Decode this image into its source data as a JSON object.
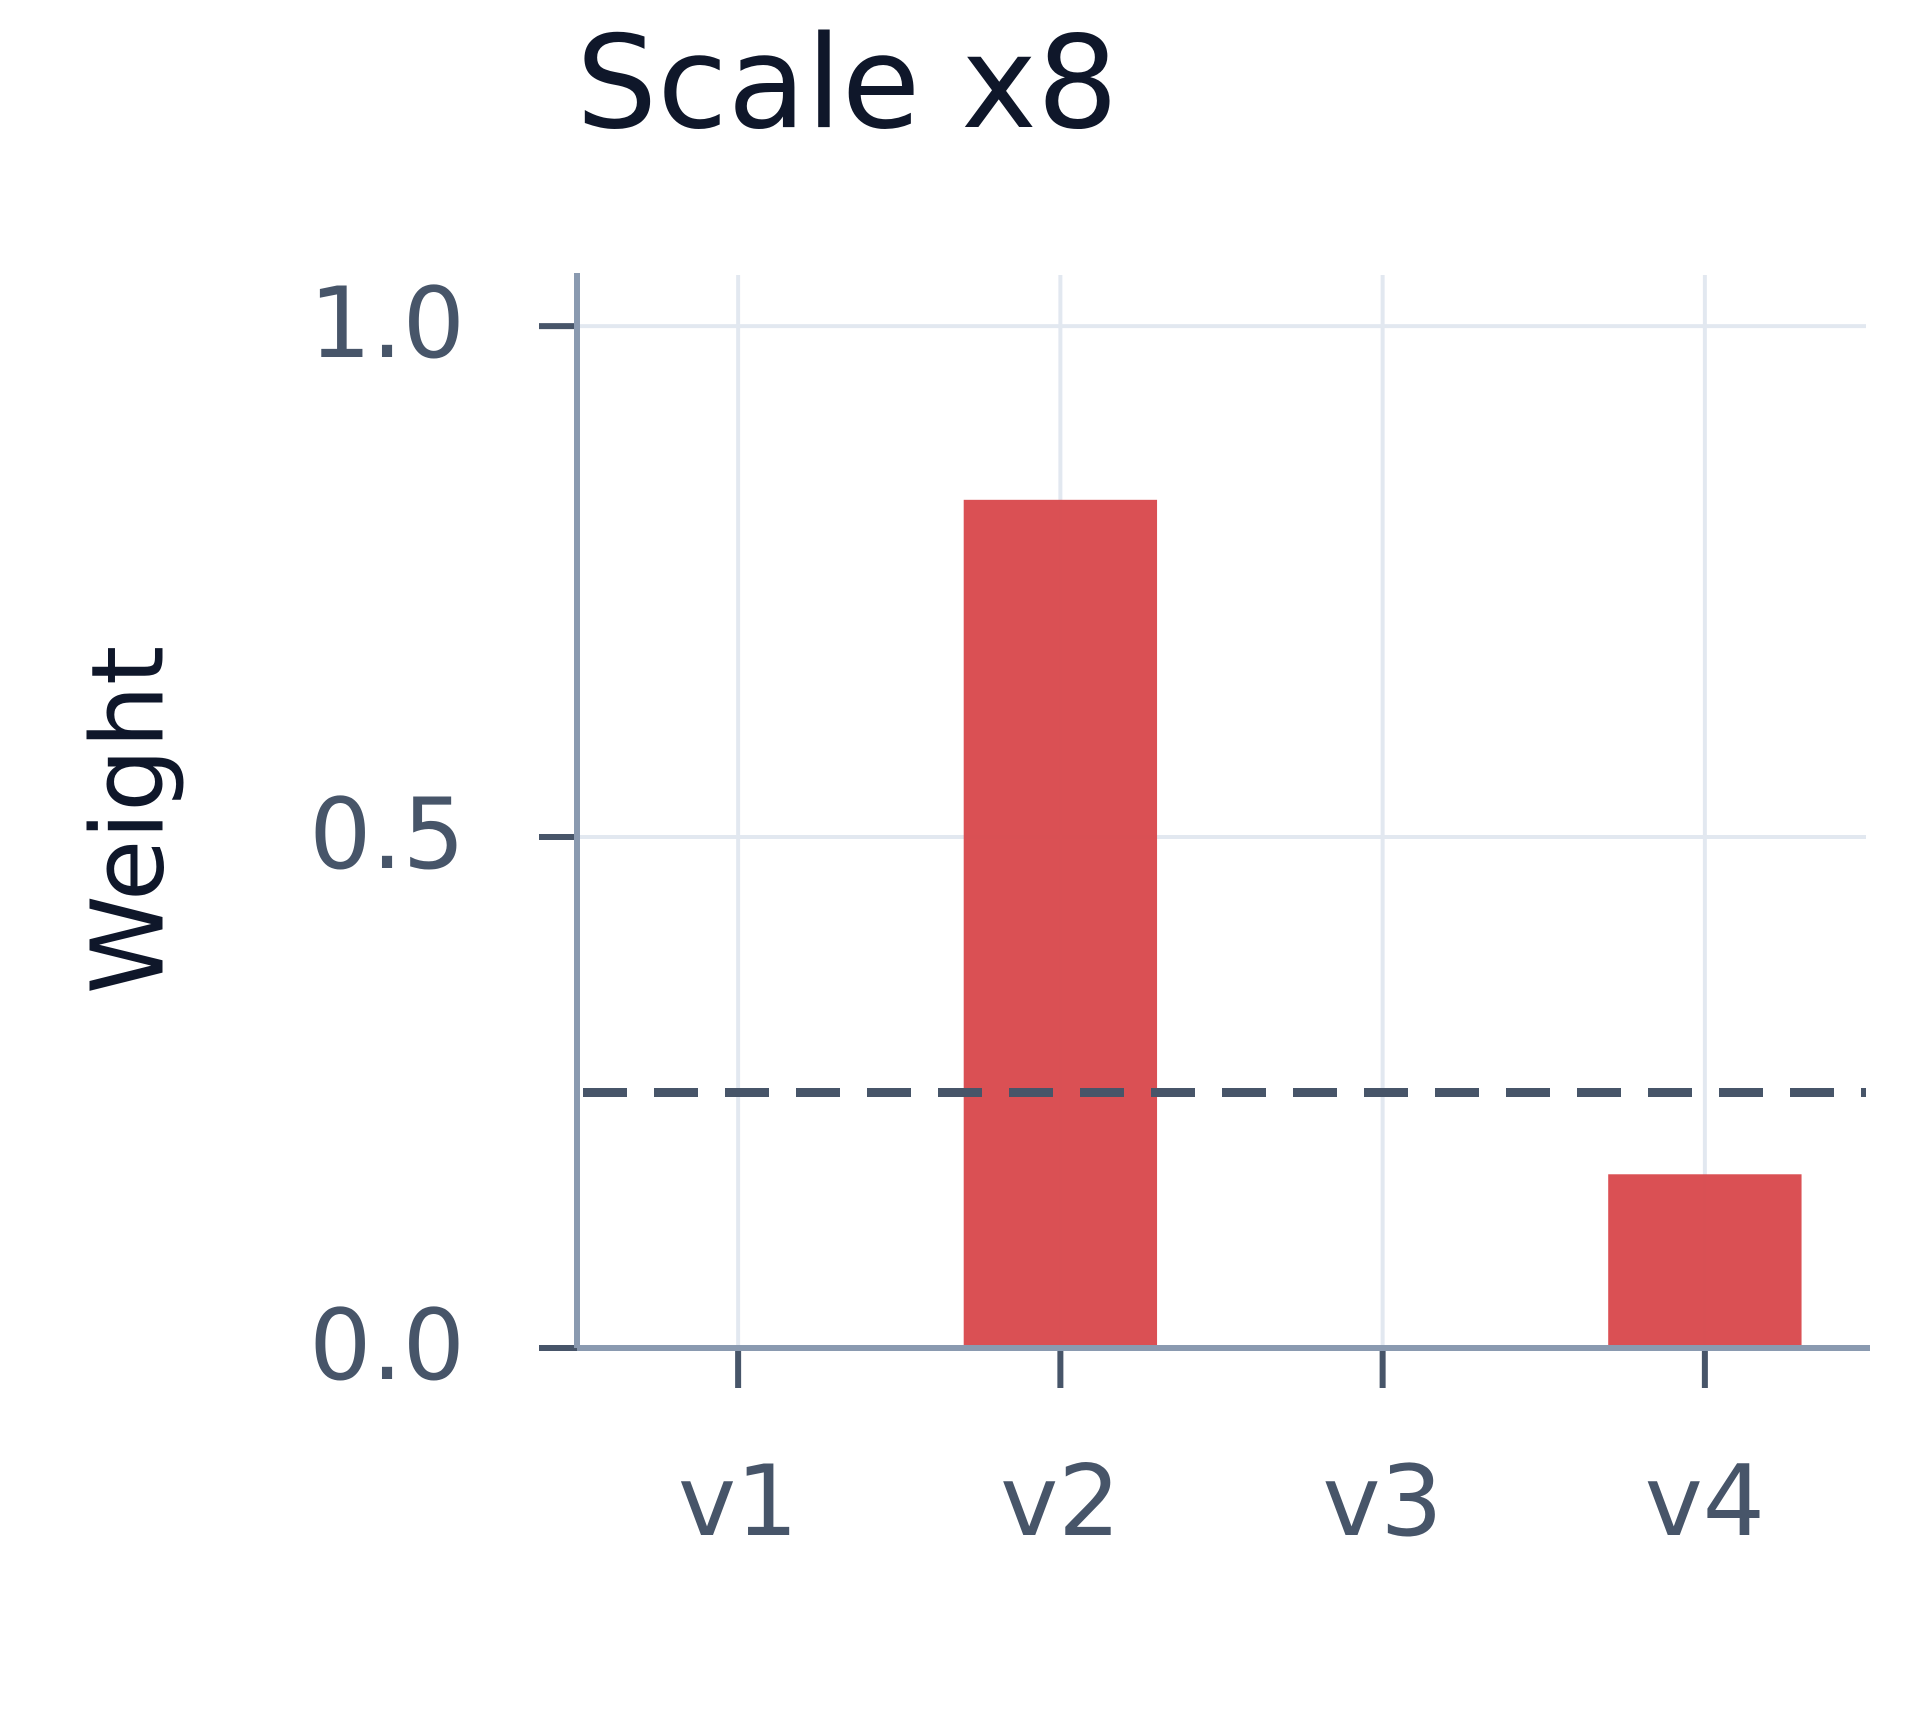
{
  "chart_data": {
    "type": "bar",
    "title": "Scale x8",
    "y_label": "Weight",
    "categories": [
      "v1",
      "v2",
      "v3",
      "v4"
    ],
    "values": [
      0,
      0.83,
      0,
      0.17
    ],
    "color": "#d94a4e",
    "ylim": [
      0,
      1.05
    ],
    "yticks": [
      {
        "value": 0,
        "label": "0.0"
      },
      0.5,
      {
        "value": 1,
        "label": "1.0"
      }
    ],
    "reference_line": 0.25,
    "reference_color": "#475569",
    "grid": true
  }
}
